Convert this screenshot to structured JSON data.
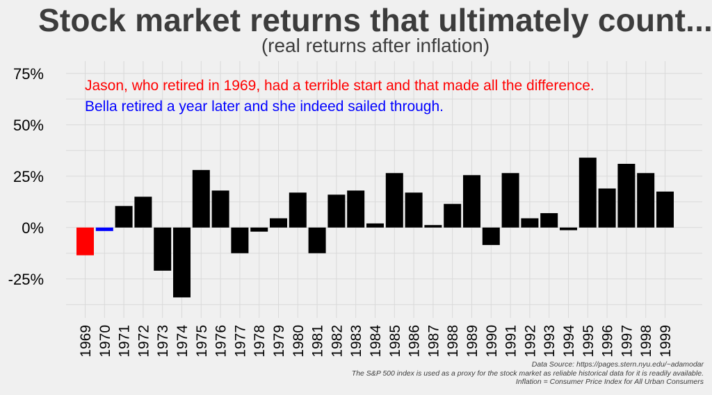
{
  "title": "Stock market returns that ultimately count...",
  "subtitle": "(real returns after inflation)",
  "annotations": {
    "jason": "Jason, who retired in 1969, had a terrible start and that made all the difference.",
    "bella": "Bella retired a year later and she indeed sailed through."
  },
  "notes": {
    "source": "Data Source: https://pages.stern.nyu.edu/~adamodar",
    "proxy": "The S&P 500 index is used as a proxy for the stock market as reliable historical data for it is readily available.",
    "inflation": "Inflation = Consumer Price Index for All Urban Consumers"
  },
  "colors": {
    "highlight_1969": "#ff0000",
    "highlight_1970": "#0000ff",
    "default_bar": "#000000",
    "background": "#f0f0f0",
    "grid": "#d9d9d9",
    "title_text": "#3c3c3c"
  },
  "chart_data": {
    "type": "bar",
    "categories": [
      "1969",
      "1970",
      "1971",
      "1972",
      "1973",
      "1974",
      "1975",
      "1976",
      "1977",
      "1978",
      "1979",
      "1980",
      "1981",
      "1982",
      "1983",
      "1984",
      "1985",
      "1986",
      "1987",
      "1988",
      "1989",
      "1990",
      "1991",
      "1992",
      "1993",
      "1994",
      "1995",
      "1996",
      "1997",
      "1998",
      "1999"
    ],
    "values": [
      -13.5,
      -1.7,
      10.5,
      15.0,
      -21.0,
      -34.0,
      28.0,
      18.0,
      -12.5,
      -2.0,
      4.5,
      17.0,
      -12.5,
      16.0,
      18.0,
      2.0,
      26.5,
      17.0,
      1.2,
      11.5,
      25.5,
      -8.5,
      26.5,
      4.5,
      7.0,
      -1.3,
      34.0,
      19.0,
      31.0,
      26.5,
      17.5
    ],
    "highlight": {
      "1969": "#ff0000",
      "1970": "#0000ff"
    },
    "yticks": [
      -25,
      0,
      25,
      50,
      75
    ],
    "ytick_labels": [
      "-25%",
      "0%",
      "25%",
      "50%",
      "75%"
    ],
    "ylim": [
      -44,
      81
    ],
    "grid": true,
    "xlabel": "",
    "ylabel": ""
  }
}
